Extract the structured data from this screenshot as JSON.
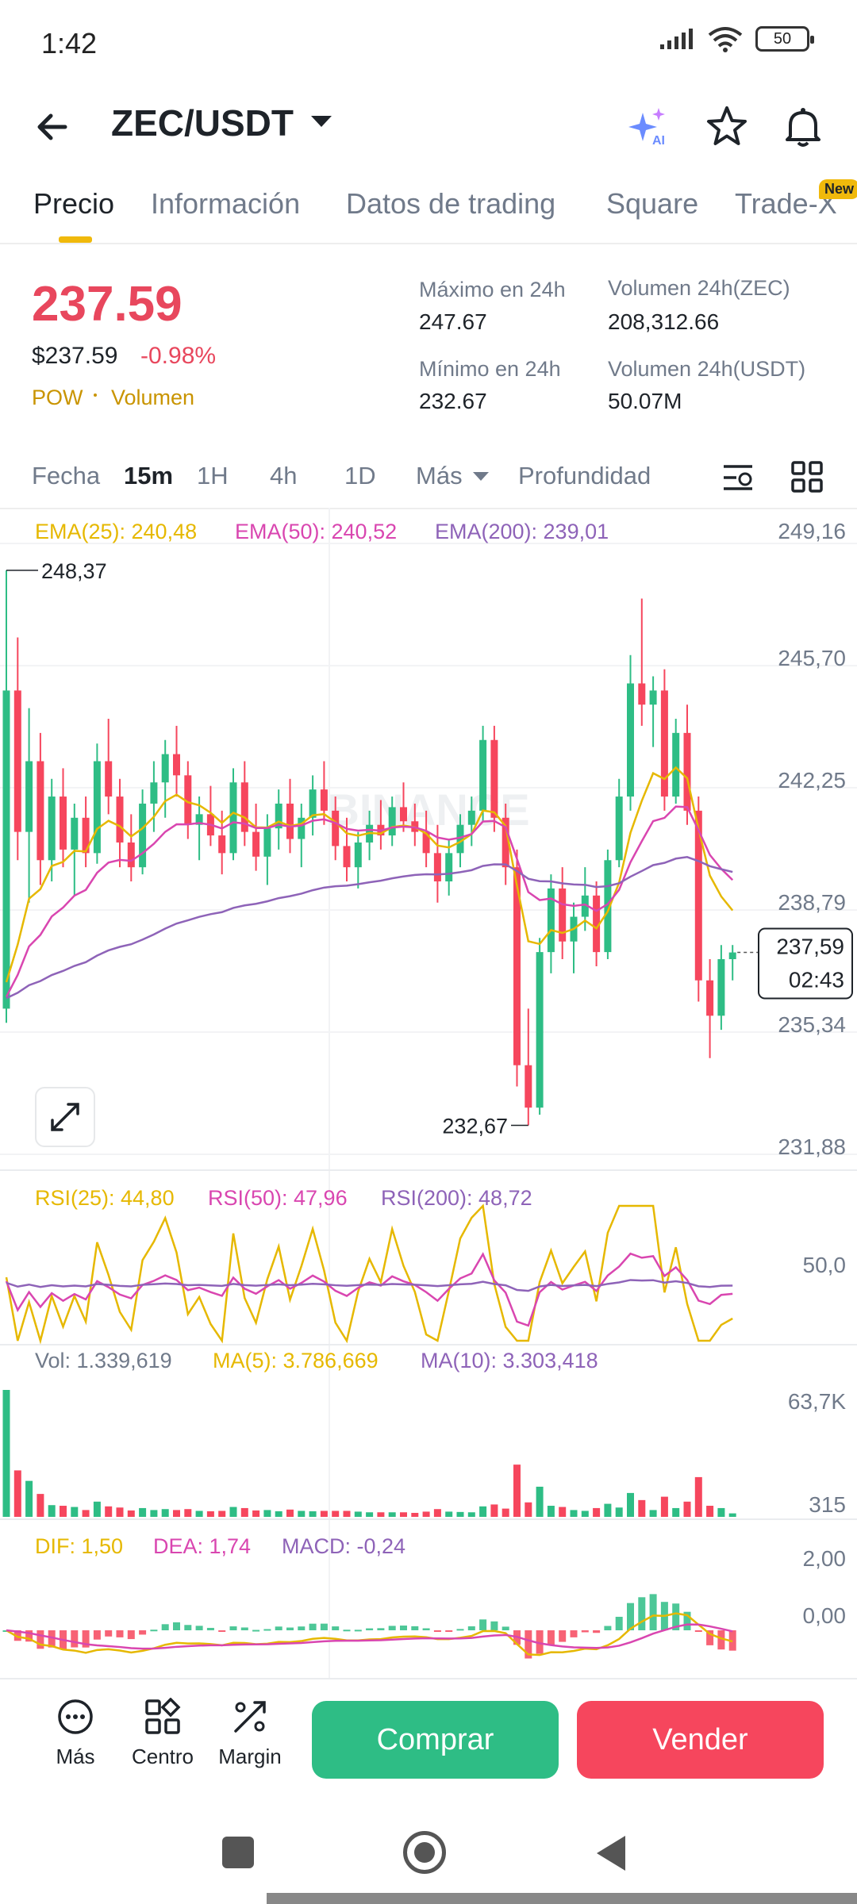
{
  "status_bar": {
    "time": "1:42",
    "battery": "50"
  },
  "header": {
    "pair": "ZEC/USDT"
  },
  "tabs": [
    {
      "label": "Precio",
      "active": true
    },
    {
      "label": "Información",
      "active": false
    },
    {
      "label": "Datos de trading",
      "active": false
    },
    {
      "label": "Square",
      "active": false
    },
    {
      "label": "Trade-X",
      "active": false
    }
  ],
  "new_badge": "New",
  "price": {
    "last": "237.59",
    "usd": "$237.59",
    "change_pct": "-0.98%",
    "tag_pow": "POW",
    "tag_volume": "Volumen"
  },
  "stats": {
    "high_label": "Máximo en 24h",
    "high_value": "247.67",
    "low_label": "Mínimo en 24h",
    "low_value": "232.67",
    "vol_zec_label": "Volumen 24h(ZEC)",
    "vol_zec_value": "208,312.66",
    "vol_usdt_label": "Volumen 24h(USDT)",
    "vol_usdt_value": "50.07M"
  },
  "intervals": {
    "fecha": "Fecha",
    "m15": "15m",
    "h1": "1H",
    "h4": "4h",
    "d1": "1D",
    "mas": "Más",
    "profundidad": "Profundidad",
    "active": "15m"
  },
  "indicators": {
    "ema25": "EMA(25): 240,48",
    "ema50": "EMA(50): 240,52",
    "ema200": "EMA(200): 239,01",
    "rsi25": "RSI(25): 44,80",
    "rsi50": "RSI(50): 47,96",
    "rsi200": "RSI(200): 48,72",
    "vol": "Vol: 1.339,619",
    "ma5": "MA(5): 3.786,669",
    "ma10": "MA(10): 3.303,418",
    "dif": "DIF: 1,50",
    "dea": "DEA: 1,74",
    "macd": "MACD: -0,24"
  },
  "colors": {
    "up": "#2ebd85",
    "down": "#f6465d",
    "ema25": "#e6b800",
    "ema50": "#d946b0",
    "ema200": "#8e63b8",
    "accent": "#f0b90b"
  },
  "chart_data": {
    "type": "candlestick",
    "interval": "15m",
    "watermark": "BINANCE",
    "price_axis_ticks": [
      "249,16",
      "245,70",
      "242,25",
      "238,79",
      "235,34",
      "231,88"
    ],
    "ylim": [
      231.88,
      249.16
    ],
    "marked_high": "248,37",
    "marked_low": "232,67",
    "current_price_label": "237,59",
    "countdown": "02:43",
    "rsi_axis_tick": "50,0",
    "volume_axis_ticks": [
      "63,7K",
      "315"
    ],
    "macd_axis_ticks": [
      "2,00",
      "0,00"
    ],
    "candles_ohlc": [
      [
        236.0,
        248.4,
        235.6,
        245.0
      ],
      [
        245.0,
        246.5,
        240.2,
        241.0
      ],
      [
        241.0,
        244.5,
        239.0,
        243.0
      ],
      [
        243.0,
        243.8,
        239.5,
        240.2
      ],
      [
        240.2,
        242.5,
        239.6,
        242.0
      ],
      [
        242.0,
        242.8,
        240.0,
        240.5
      ],
      [
        240.5,
        241.8,
        239.2,
        241.4
      ],
      [
        241.4,
        242.0,
        240.0,
        240.4
      ],
      [
        240.4,
        243.5,
        240.1,
        243.0
      ],
      [
        243.0,
        244.2,
        241.5,
        242.0
      ],
      [
        242.0,
        242.5,
        240.0,
        240.7
      ],
      [
        240.7,
        241.5,
        239.6,
        240.0
      ],
      [
        240.0,
        242.2,
        239.8,
        241.8
      ],
      [
        241.8,
        243.0,
        241.0,
        242.4
      ],
      [
        242.4,
        243.6,
        241.4,
        243.2
      ],
      [
        243.2,
        244.0,
        242.0,
        242.6
      ],
      [
        242.6,
        243.0,
        240.8,
        241.2
      ],
      [
        241.2,
        242.0,
        240.2,
        241.5
      ],
      [
        241.5,
        242.3,
        240.6,
        240.9
      ],
      [
        240.9,
        241.6,
        239.8,
        240.4
      ],
      [
        240.4,
        242.8,
        240.2,
        242.4
      ],
      [
        242.4,
        243.0,
        240.6,
        241.0
      ],
      [
        241.0,
        241.8,
        239.9,
        240.3
      ],
      [
        240.3,
        241.5,
        239.5,
        241.1
      ],
      [
        241.1,
        242.2,
        240.5,
        241.8
      ],
      [
        241.8,
        242.5,
        240.4,
        240.8
      ],
      [
        240.8,
        241.8,
        240.0,
        241.4
      ],
      [
        241.4,
        242.6,
        240.9,
        242.2
      ],
      [
        242.2,
        243.0,
        241.2,
        241.6
      ],
      [
        241.6,
        242.0,
        240.2,
        240.6
      ],
      [
        240.6,
        241.4,
        239.6,
        240.0
      ],
      [
        240.0,
        241.0,
        239.4,
        240.7
      ],
      [
        240.7,
        241.6,
        240.2,
        241.2
      ],
      [
        241.2,
        241.9,
        240.5,
        240.9
      ],
      [
        240.9,
        242.0,
        240.6,
        241.7
      ],
      [
        241.7,
        242.4,
        241.0,
        241.3
      ],
      [
        241.3,
        241.8,
        240.6,
        241.0
      ],
      [
        241.0,
        241.6,
        240.0,
        240.4
      ],
      [
        240.4,
        241.2,
        239.0,
        239.6
      ],
      [
        239.6,
        240.8,
        239.2,
        240.4
      ],
      [
        240.4,
        241.5,
        240.0,
        241.2
      ],
      [
        241.2,
        242.0,
        240.6,
        241.6
      ],
      [
        241.6,
        244.0,
        241.3,
        243.6
      ],
      [
        243.6,
        244.0,
        241.0,
        241.4
      ],
      [
        241.4,
        241.8,
        239.5,
        240.0
      ],
      [
        240.0,
        240.5,
        233.8,
        234.4
      ],
      [
        234.4,
        236.0,
        232.7,
        233.2
      ],
      [
        233.2,
        238.0,
        233.0,
        237.6
      ],
      [
        237.6,
        239.8,
        237.0,
        239.4
      ],
      [
        239.4,
        240.0,
        237.4,
        237.9
      ],
      [
        237.9,
        239.0,
        237.0,
        238.6
      ],
      [
        238.6,
        240.0,
        238.2,
        239.2
      ],
      [
        239.2,
        239.6,
        237.2,
        237.6
      ],
      [
        237.6,
        240.5,
        237.4,
        240.2
      ],
      [
        240.2,
        242.5,
        240.0,
        242.0
      ],
      [
        242.0,
        246.0,
        241.6,
        245.2
      ],
      [
        245.2,
        247.6,
        244.0,
        244.6
      ],
      [
        244.6,
        245.4,
        243.4,
        245.0
      ],
      [
        245.0,
        245.6,
        241.6,
        242.0
      ],
      [
        242.0,
        244.2,
        241.8,
        243.8
      ],
      [
        243.8,
        244.6,
        241.2,
        241.6
      ],
      [
        241.6,
        242.0,
        236.2,
        236.8
      ],
      [
        236.8,
        237.4,
        234.6,
        235.8
      ],
      [
        235.8,
        237.8,
        235.4,
        237.4
      ],
      [
        237.4,
        237.8,
        236.8,
        237.59
      ]
    ]
  }
}
